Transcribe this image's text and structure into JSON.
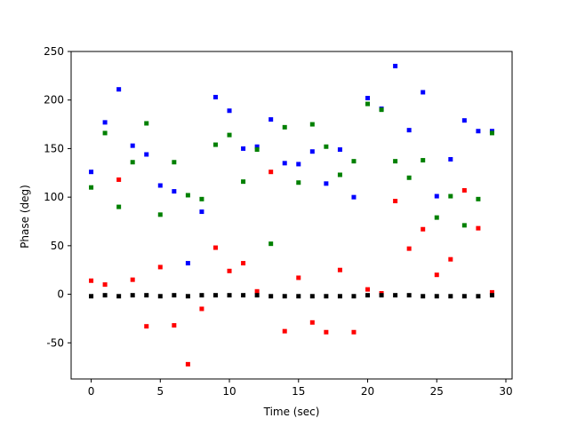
{
  "chart_data": {
    "type": "scatter",
    "title": "",
    "xlabel": "Time (sec)",
    "ylabel": "Phase (deg)",
    "xlim": [
      -1.45,
      30.45
    ],
    "ylim": [
      -87.2,
      250
    ],
    "xticks": [
      0,
      5,
      10,
      15,
      20,
      25,
      30
    ],
    "yticks": [
      -50,
      0,
      50,
      100,
      150,
      200,
      250
    ],
    "grid": false,
    "legend": "none",
    "marker": "square",
    "x": [
      0,
      1,
      2,
      3,
      4,
      5,
      6,
      7,
      8,
      9,
      10,
      11,
      12,
      13,
      14,
      15,
      16,
      17,
      18,
      19,
      20,
      21,
      22,
      23,
      24,
      25,
      26,
      27,
      28,
      29
    ],
    "series": [
      {
        "color": "#0000ff",
        "values": [
          126,
          177,
          211,
          153,
          144,
          112,
          106,
          32,
          85,
          203,
          189,
          150,
          152,
          180,
          135,
          134,
          147,
          114,
          149,
          100,
          202,
          191,
          235,
          169,
          208,
          101,
          139,
          179,
          168,
          168
        ]
      },
      {
        "color": "#008000",
        "values": [
          110,
          166,
          90,
          136,
          176,
          82,
          136,
          102,
          98,
          154,
          164,
          116,
          149,
          52,
          172,
          115,
          175,
          152,
          123,
          137,
          196,
          190,
          137,
          120,
          138,
          79,
          101,
          71,
          98,
          166
        ]
      },
      {
        "color": "#ff0000",
        "values": [
          14,
          10,
          118,
          15,
          -33,
          28,
          -32,
          -72,
          -15,
          48,
          24,
          32,
          3,
          126,
          -38,
          17,
          -29,
          -39,
          25,
          -39,
          5,
          1,
          96,
          47,
          67,
          20,
          36,
          107,
          68,
          2
        ]
      },
      {
        "color": "#000000",
        "values": [
          -2,
          -1,
          -2,
          -1,
          -1,
          -2,
          -1,
          -2,
          -1,
          -1,
          -1,
          -1,
          -1,
          -2,
          -2,
          -2,
          -2,
          -2,
          -2,
          -2,
          -1,
          -1,
          -1,
          -1,
          -2,
          -2,
          -2,
          -2,
          -2,
          -1
        ]
      }
    ]
  }
}
